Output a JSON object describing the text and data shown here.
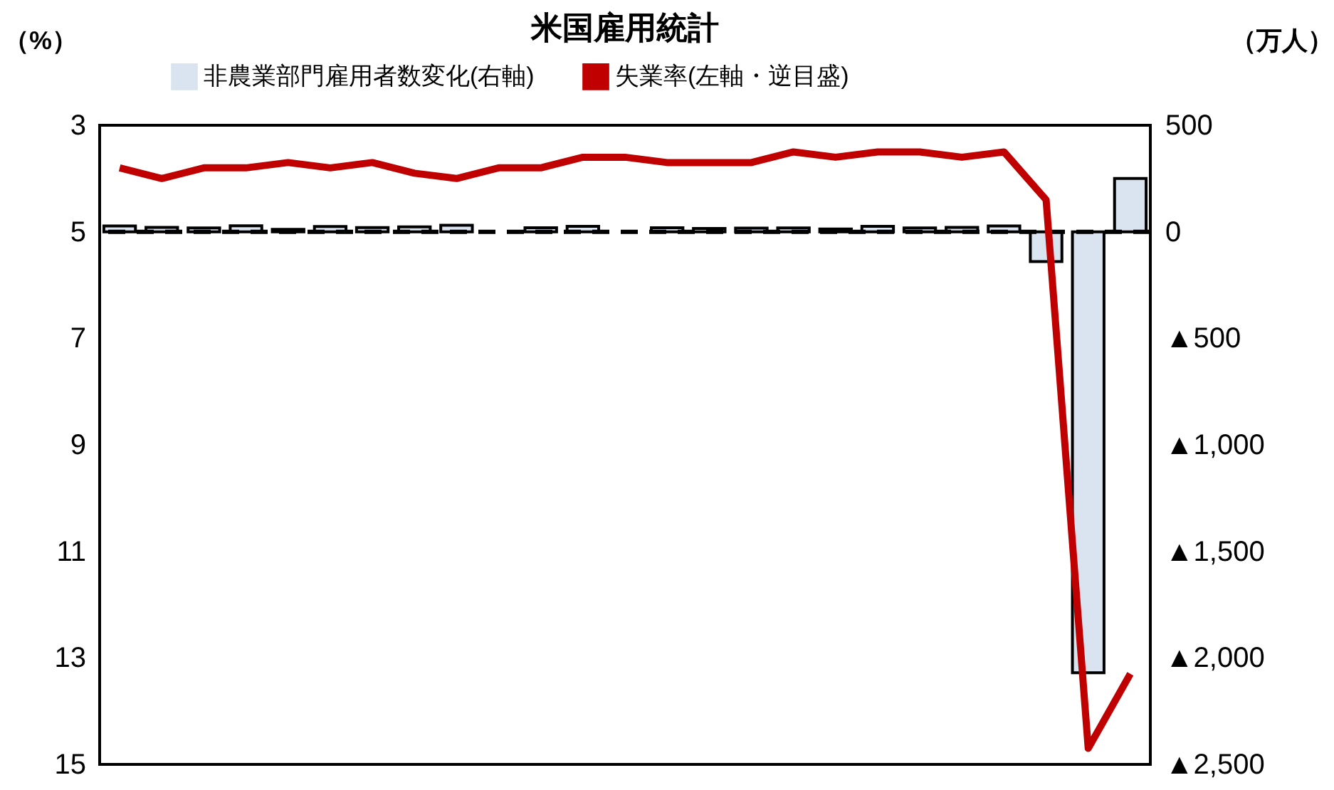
{
  "chart_data": {
    "type": "bar",
    "title": "米国雇用統計",
    "ylabel": "（%）",
    "y2label": "（万人）",
    "categories": [
      null,
      null,
      null,
      null,
      null,
      null,
      null,
      null,
      null,
      null,
      null,
      null,
      null,
      null,
      null,
      null,
      null,
      null,
      null,
      null,
      null,
      null,
      null,
      null,
      null
    ],
    "series": [
      {
        "name": "非農業部門雇用者数変化(右軸)",
        "axis": "y2",
        "color": "#dae3f0",
        "values": [
          27,
          21,
          18,
          28,
          11,
          25,
          20,
          23,
          31,
          null,
          19,
          26,
          null,
          19,
          16,
          17,
          18,
          13,
          26,
          18,
          21,
          27,
          -140,
          -2070,
          250
        ]
      },
      {
        "name": "失業率(左軸・逆目盛)",
        "type": "line",
        "color": "#c00000",
        "values": [
          3.8,
          4.0,
          3.8,
          3.8,
          3.7,
          3.8,
          3.7,
          3.9,
          4.0,
          3.8,
          3.8,
          3.6,
          3.6,
          3.7,
          3.7,
          3.7,
          3.5,
          3.6,
          3.5,
          3.5,
          3.6,
          3.5,
          4.4,
          14.7,
          13.3
        ]
      }
    ],
    "ylim": [
      15,
      3
    ],
    "yticks": [
      3,
      5,
      7,
      9,
      11,
      13,
      15
    ],
    "y2lim": [
      -2500,
      500
    ],
    "y2ticks": [
      500,
      0,
      {
        "value": -500,
        "label": "▲500"
      },
      {
        "value": -1000,
        "label": "▲1,000"
      },
      {
        "value": -1500,
        "label": "▲1,500"
      },
      {
        "value": -2000,
        "label": "▲2,000"
      },
      {
        "value": -2500,
        "label": "▲2,500"
      }
    ],
    "ref_lines": [
      {
        "axis": "y2",
        "value": 0,
        "color": "#000000",
        "line_style": "dashed"
      }
    ],
    "tick_labels": "y",
    "grid": false,
    "legend": "top",
    "line_style": "solid",
    "marker": "none"
  }
}
